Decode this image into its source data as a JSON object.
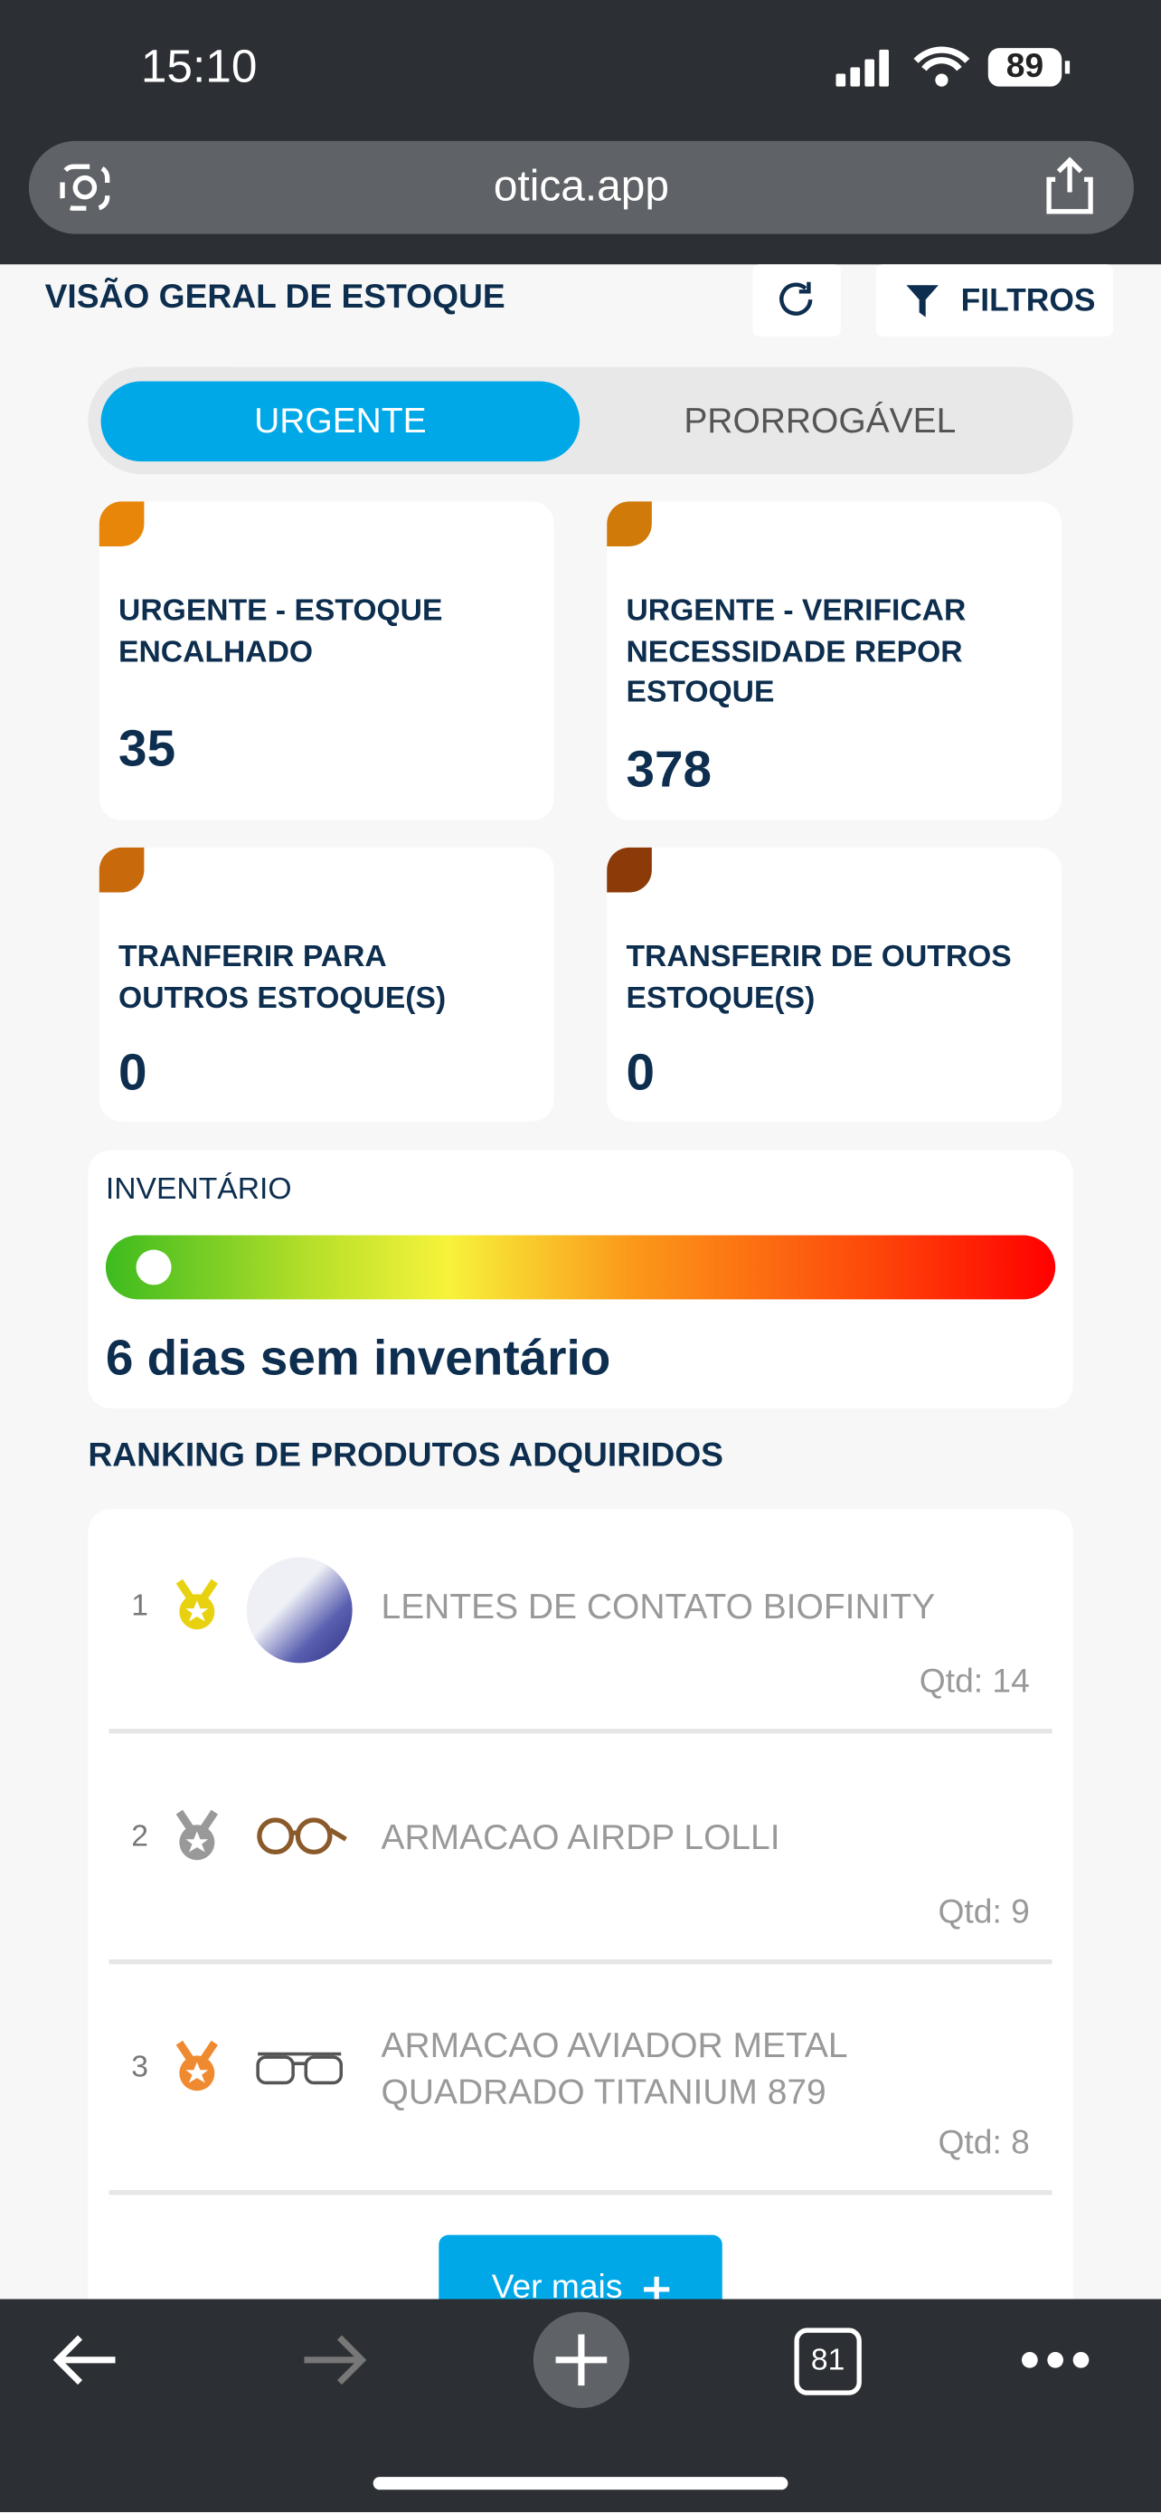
{
  "status_bar": {
    "time": "15:10",
    "battery": "89"
  },
  "browser": {
    "url": "otica.app",
    "tabs_count": "81"
  },
  "header": {
    "title": "VISÃO GERAL DE ESTOQUE",
    "filter_button": "FILTROS"
  },
  "tabs": [
    "URGENTE",
    "PRORROGÁVEL"
  ],
  "cards": [
    {
      "label": "URGENTE - ESTOQUE ENCALHADO",
      "value": "35"
    },
    {
      "label": "URGENTE - VERIFICAR NECESSIDADE REPOR ESTOQUE",
      "value": "378"
    },
    {
      "label": "TRANFERIR PARA OUTROS ESTOQUE(S)",
      "value": "0"
    },
    {
      "label": "TRANSFERIR DE OUTROS ESTOQUE(S)",
      "value": "0"
    }
  ],
  "inventory": {
    "label": "INVENTÁRIO",
    "status": "6 dias sem inventário"
  },
  "ranking": {
    "title": "RANKING DE PRODUTOS ADQUIRIDOS",
    "items": [
      {
        "rank": "1",
        "name": "LENTES DE CONTATO BIOFINITY",
        "qty": "Qtd: 14"
      },
      {
        "rank": "2",
        "name": "ARMACAO AIRDP LOLLI",
        "qty": "Qtd: 9"
      },
      {
        "rank": "3",
        "name": "ARMACAO AVIADOR METAL QUADRADO TITANIUM 879",
        "qty": "Qtd: 8"
      }
    ],
    "more_button": "Ver mais"
  }
}
